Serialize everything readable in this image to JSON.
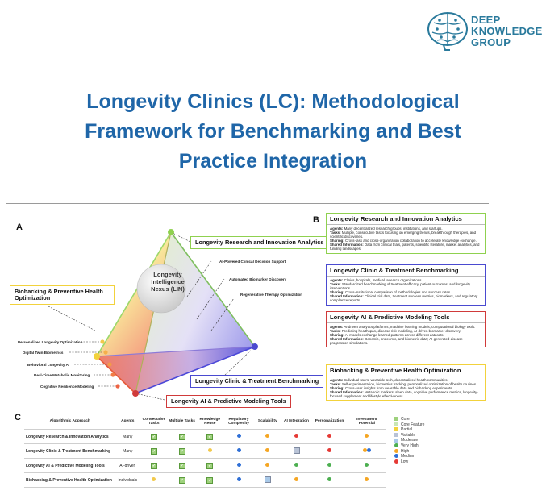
{
  "logo": {
    "line1": "DEEP",
    "line2": "KNOWLEDGE",
    "line3": "GROUP",
    "color": "#2a7a9c"
  },
  "title": {
    "line1": "Longevity Clinics (LC): Methodological",
    "line2": "Framework for Benchmarking and Best",
    "line3": "Practice Integration",
    "color": "#1f66a8"
  },
  "panel_a": {
    "label": "A",
    "center": {
      "line1": "Longevity",
      "line2": "Intelligence",
      "line3": "Nexus (LIN)"
    },
    "vertices": {
      "research": "Longevity Research and Innovation Analytics",
      "biohacking": "Biohacking & Preventive Health Optimization",
      "clinic": "Longevity Clinic & Treatment Benchmarking",
      "ai": "Longevity AI & Predictive Modeling Tools"
    },
    "inner_labels": [
      "AI-Powered Clinical Decision Support",
      "Automated Biomarker Discovery",
      "Regenerative Therapy Optimization"
    ],
    "left_labels": [
      "Personalized Longevity Optimization",
      "Digital Twin Biometrics",
      "Behavioral Longevity AI",
      "Real-Time Metabolic Monitoring",
      "Cognitive Resilience Modeling"
    ]
  },
  "panel_b": {
    "label": "B",
    "boxes": [
      {
        "title": "Longevity Research and Innovation Analytics",
        "color": "#8fd14f",
        "lines": [
          {
            "k": "Agents:",
            "v": " Many decentralized research groups, institutions, and startups."
          },
          {
            "k": "Tasks:",
            "v": " Multiple, consecutive tasks focusing on emerging trends, breakthrough therapies, and scientific discoveries."
          },
          {
            "k": "Sharing:",
            "v": " Cross-task and cross-organization collaboration to accelerate knowledge exchange."
          },
          {
            "k": "Shared Information:",
            "v": " Data from clinical trials, patents, scientific literature, market analytics, and funding landscapes."
          }
        ]
      },
      {
        "title": "Longevity Clinic & Treatment Benchmarking",
        "color": "#4a4ad0",
        "lines": [
          {
            "k": "Agents:",
            "v": " Clinics, hospitals, medical research organizations."
          },
          {
            "k": "Tasks:",
            "v": " Standardized benchmarking of treatment efficacy, patient outcomes, and longevity interventions."
          },
          {
            "k": "Sharing:",
            "v": " Cross-institutional comparison of methodologies and success rates."
          },
          {
            "k": "Shared Information:",
            "v": " Clinical trial data, treatment success metrics, biomarkers, and regulatory compliance reports."
          }
        ]
      },
      {
        "title": "Longevity AI & Predictive Modeling Tools",
        "color": "#d03a3a",
        "lines": [
          {
            "k": "Agents:",
            "v": " AI-driven analytics platforms, machine learning models, computational biology tools."
          },
          {
            "k": "Tasks:",
            "v": " Predicting healthspan, disease risk modeling, AI-driven biomarker discovery."
          },
          {
            "k": "Sharing:",
            "v": " AI models exchange learned patterns across different datasets."
          },
          {
            "k": "Shared Information:",
            "v": " Genomic, proteomic, and biometric data; AI-generated disease progression simulations."
          }
        ]
      },
      {
        "title": "Biohacking & Preventive Health Optimization",
        "color": "#f2d23c",
        "lines": [
          {
            "k": "Agents:",
            "v": " Individual users, wearable tech, decentralized health communities."
          },
          {
            "k": "Tasks:",
            "v": " Self-experimentation, biometrics tracking, personalized optimization of health routines."
          },
          {
            "k": "Sharing:",
            "v": " Cross-user insights from wearable data and biohacking experiments."
          },
          {
            "k": "Shared Information:",
            "v": " Metabolic markers, sleep data, cognitive performance metrics, longevity-focused supplement and lifestyle effectiveness."
          }
        ]
      }
    ]
  },
  "panel_c": {
    "label": "C",
    "headers": [
      "Algorithmic Approach",
      "Agents",
      "Consecutive Tasks",
      "Multiple Tasks",
      "Knowledge Reuse",
      "Regulatory Complexity",
      "Scalability",
      "AI Integration",
      "Personalization",
      "Investment Potential"
    ],
    "rows": [
      {
        "name": "Longevity Research & Innovation Analytics",
        "agents": "Many",
        "cells": [
          "check",
          "check",
          "check",
          "blue",
          "orange",
          "red",
          "red",
          "orange"
        ]
      },
      {
        "name": "Longevity Clinic & Treatment Benchmarking",
        "agents": "Many",
        "cells": [
          "check",
          "check",
          "yellow",
          "blue",
          "orange",
          "var",
          "red",
          "orangeblue"
        ]
      },
      {
        "name": "Longevity AI & Predictive Modeling Tools",
        "agents": "AI-driven",
        "cells": [
          "check",
          "check",
          "check",
          "blue",
          "orange",
          "green",
          "green",
          "green"
        ]
      },
      {
        "name": "Biohacking & Preventive Health Optimization",
        "agents": "Individuals",
        "cells": [
          "yellow",
          "check",
          "check",
          "blue",
          "mod",
          "orange",
          "green",
          "orange"
        ]
      }
    ]
  },
  "legend": [
    {
      "label": "Core",
      "color": "#9ed17c"
    },
    {
      "label": "Core Feature",
      "color": "#c9e6b4"
    },
    {
      "label": "Partial",
      "color": "#f2d23c"
    },
    {
      "label": "Variable",
      "color": "#b9c3d6"
    },
    {
      "label": "Moderate",
      "color": "#a9c9e8"
    },
    {
      "label": "Very High",
      "color": "#4caf50"
    },
    {
      "label": "High",
      "color": "#f5a623"
    },
    {
      "label": "Medium",
      "color": "#2f6fd6"
    },
    {
      "label": "Low",
      "color": "#e53935"
    }
  ]
}
